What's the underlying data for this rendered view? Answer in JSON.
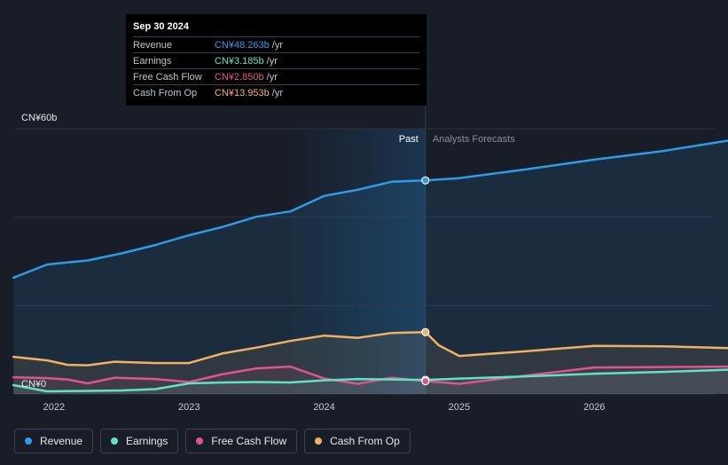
{
  "tooltip": {
    "date": "Sep 30 2024",
    "rows": [
      {
        "label": "Revenue",
        "value": "CN¥48.263b",
        "unit": "/yr",
        "color": "#2e9be6"
      },
      {
        "label": "Earnings",
        "value": "CN¥3.185b",
        "unit": "/yr",
        "color": "#5fe3c3"
      },
      {
        "label": "Free Cash Flow",
        "value": "CN¥2.850b",
        "unit": "/yr",
        "color": "#e0548e"
      },
      {
        "label": "Cash From Op",
        "value": "CN¥13.953b",
        "unit": "/yr",
        "color": "#f0b262"
      }
    ]
  },
  "labels": {
    "past": "Past",
    "forecast": "Analysts Forecasts",
    "y_top": "CN¥60b",
    "y_zero": "CN¥0"
  },
  "legend": [
    {
      "label": "Revenue",
      "color": "#2e9be6"
    },
    {
      "label": "Earnings",
      "color": "#5fe3c3"
    },
    {
      "label": "Free Cash Flow",
      "color": "#e0548e"
    },
    {
      "label": "Cash From Op",
      "color": "#f0b262"
    }
  ],
  "chart_data": {
    "type": "line",
    "ylim": [
      0,
      60
    ],
    "xlim": [
      2021.6,
      2026.99
    ],
    "x_ticks": [
      "2022",
      "2023",
      "2024",
      "2025",
      "2026"
    ],
    "x_tick_values": [
      2022,
      2023,
      2024,
      2025,
      2026
    ],
    "divider_x": 2024.75,
    "highlight_start_x": 2023.75,
    "series": [
      {
        "name": "Revenue",
        "color": "#2e9be6",
        "x": [
          2021.7,
          2021.95,
          2022.25,
          2022.5,
          2022.75,
          2023.0,
          2023.25,
          2023.5,
          2023.75,
          2024.0,
          2024.25,
          2024.5,
          2024.75,
          2025.0,
          2025.5,
          2026.0,
          2026.5,
          2026.99
        ],
        "values": [
          26.3,
          29.3,
          30.2,
          31.8,
          33.7,
          35.9,
          37.8,
          40.1,
          41.3,
          44.8,
          46.2,
          48.0,
          48.3,
          48.8,
          50.8,
          53.0,
          54.9,
          57.3
        ]
      },
      {
        "name": "Earnings",
        "color": "#5fe3c3",
        "x": [
          2021.7,
          2021.95,
          2022.25,
          2022.5,
          2022.75,
          2023.0,
          2023.25,
          2023.5,
          2023.75,
          2024.0,
          2024.25,
          2024.5,
          2024.75,
          2025.0,
          2025.5,
          2026.0,
          2026.5,
          2026.99
        ],
        "values": [
          2.0,
          0.6,
          0.7,
          0.8,
          1.1,
          2.4,
          2.6,
          2.7,
          2.6,
          3.1,
          3.4,
          3.3,
          3.2,
          3.5,
          4.0,
          4.6,
          5.0,
          5.5
        ]
      },
      {
        "name": "Free Cash Flow",
        "color": "#e0548e",
        "x": [
          2021.7,
          2021.95,
          2022.1,
          2022.25,
          2022.45,
          2022.75,
          2023.0,
          2023.25,
          2023.5,
          2023.75,
          2024.0,
          2024.25,
          2024.5,
          2024.75,
          2025.0,
          2025.5,
          2026.0,
          2026.5,
          2026.99
        ],
        "values": [
          3.8,
          3.6,
          3.3,
          2.4,
          3.7,
          3.4,
          2.7,
          4.5,
          5.8,
          6.2,
          3.5,
          2.3,
          3.7,
          2.9,
          2.3,
          4.2,
          6.0,
          6.1,
          6.2
        ]
      },
      {
        "name": "Cash From Op",
        "color": "#f0b262",
        "x": [
          2021.7,
          2021.95,
          2022.1,
          2022.25,
          2022.45,
          2022.75,
          2023.0,
          2023.25,
          2023.5,
          2023.75,
          2024.0,
          2024.25,
          2024.5,
          2024.75,
          2024.85,
          2025.0,
          2025.5,
          2026.0,
          2026.5,
          2026.99
        ],
        "values": [
          8.4,
          7.6,
          6.6,
          6.5,
          7.3,
          7.0,
          7.0,
          9.2,
          10.5,
          12.0,
          13.2,
          12.7,
          13.8,
          14.0,
          11.0,
          8.6,
          9.7,
          10.9,
          10.8,
          10.4
        ]
      }
    ]
  }
}
